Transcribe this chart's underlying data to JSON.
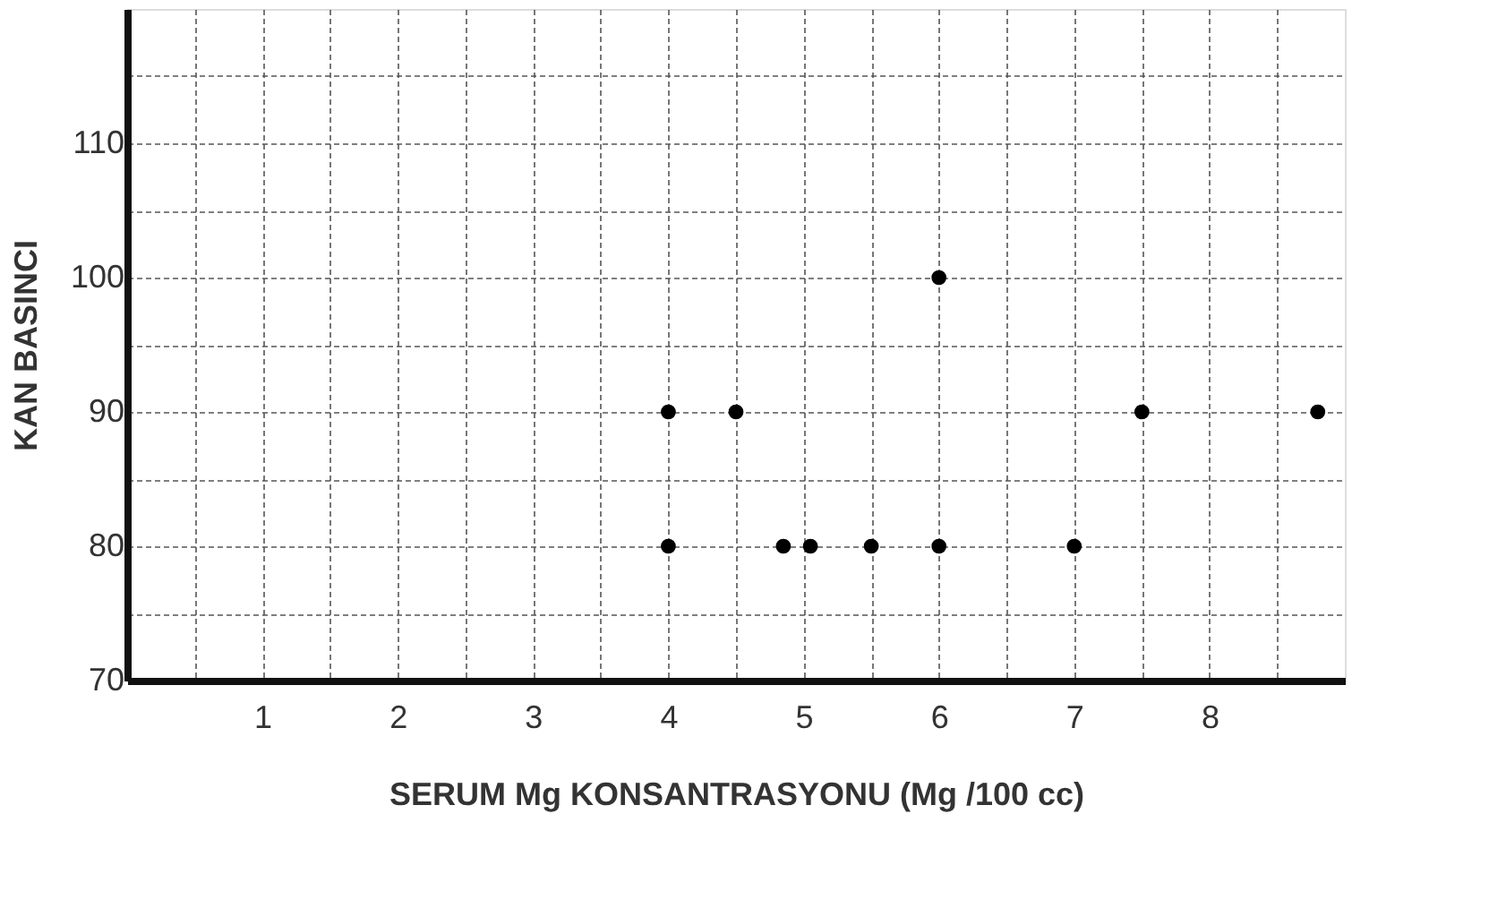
{
  "chart_data": {
    "type": "scatter",
    "xlabel": "SERUM Mg KONSANTRASYONU (Mg /100 cc)",
    "ylabel": "KAN BASINCI",
    "x": [
      4,
      4,
      4.5,
      4.85,
      5.05,
      5.5,
      6,
      6,
      7,
      7.5,
      8.8
    ],
    "series": [
      {
        "color": "#000000",
        "values": [
          80,
          90,
          90,
          80,
          80,
          80,
          100,
          80,
          80,
          90,
          90
        ]
      }
    ],
    "xlim": [
      0,
      9
    ],
    "ylim": [
      70,
      120
    ],
    "xticks": [
      {
        "value": 0.5,
        "label": null
      },
      1,
      {
        "value": 1.5,
        "label": null
      },
      2,
      {
        "value": 2.5,
        "label": null
      },
      3,
      {
        "value": 3.5,
        "label": null
      },
      4,
      {
        "value": 4.5,
        "label": null
      },
      5,
      {
        "value": 5.5,
        "label": null
      },
      6,
      {
        "value": 6.5,
        "label": null
      },
      7,
      {
        "value": 7.5,
        "label": null
      },
      8,
      {
        "value": 8.5,
        "label": null
      }
    ],
    "yticks": [
      70,
      {
        "value": 75,
        "label": null
      },
      80,
      {
        "value": 85,
        "label": null
      },
      90,
      {
        "value": 95,
        "label": null
      },
      100,
      {
        "value": 105,
        "label": null
      },
      110,
      {
        "value": 115,
        "label": null
      }
    ],
    "grid": true,
    "marker": "circle"
  }
}
